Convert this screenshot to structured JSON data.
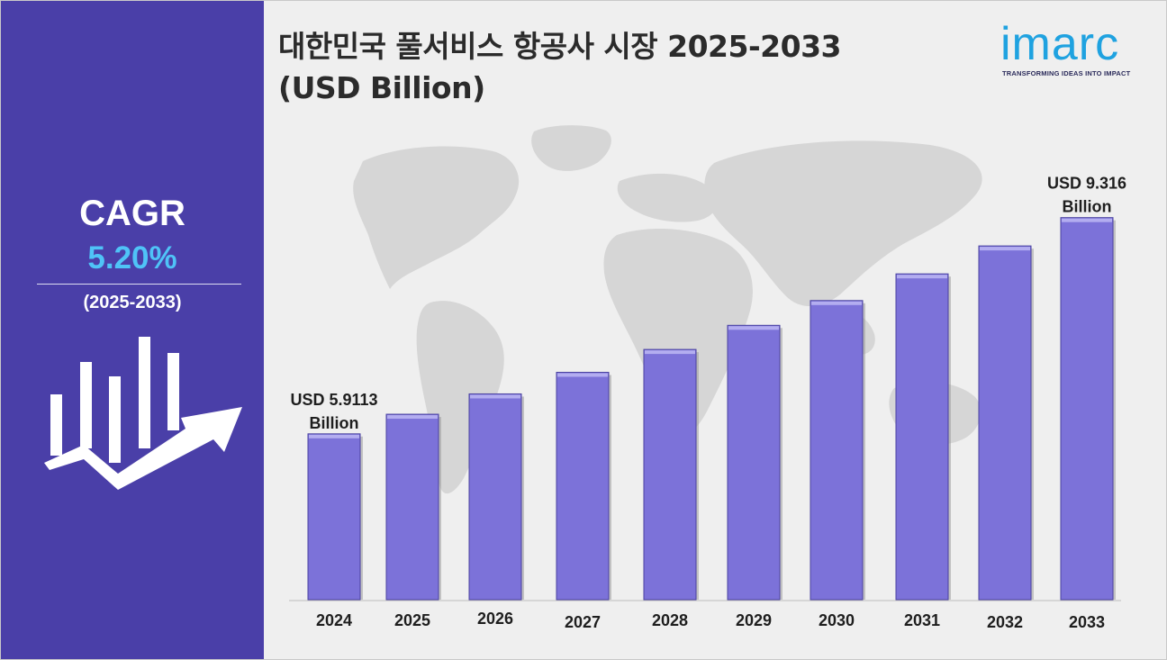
{
  "sidebar": {
    "cagr_label": "CAGR",
    "cagr_value": "5.20%",
    "cagr_period": "(2025-2033)",
    "icon": "bar-growth-arrow-icon"
  },
  "header": {
    "title_line1": "대한민국 풀서비스 항공사 시장 2025-2033",
    "title_line2": "(USD Billion)"
  },
  "logo": {
    "name": "imarc",
    "tagline": "TRANSFORMING IDEAS INTO IMPACT"
  },
  "colors": {
    "sidebar": "#4a3fa8",
    "bar": "#7c72d9",
    "accent": "#4fc3f7",
    "brand": "#1fa2e0"
  },
  "background_image": "world-map",
  "chart_data": {
    "type": "bar",
    "categories": [
      "2024",
      "2025",
      "2026",
      "2027",
      "2028",
      "2029",
      "2030",
      "2031",
      "2032",
      "2033"
    ],
    "values": [
      5.9113,
      6.22,
      6.54,
      6.88,
      7.24,
      7.62,
      8.01,
      8.43,
      8.87,
      9.316
    ],
    "title": "대한민국 풀서비스 항공사 시장 2025-2033",
    "ylabel": "",
    "xlabel": "",
    "ylim": [
      3.3,
      9.85
    ],
    "grid": false,
    "data_labels": [
      {
        "category": "2024",
        "line1": "USD 5.9113",
        "line2": "Billion"
      },
      {
        "category": "2033",
        "line1": "USD 9.316",
        "line2": "Billion"
      }
    ]
  }
}
